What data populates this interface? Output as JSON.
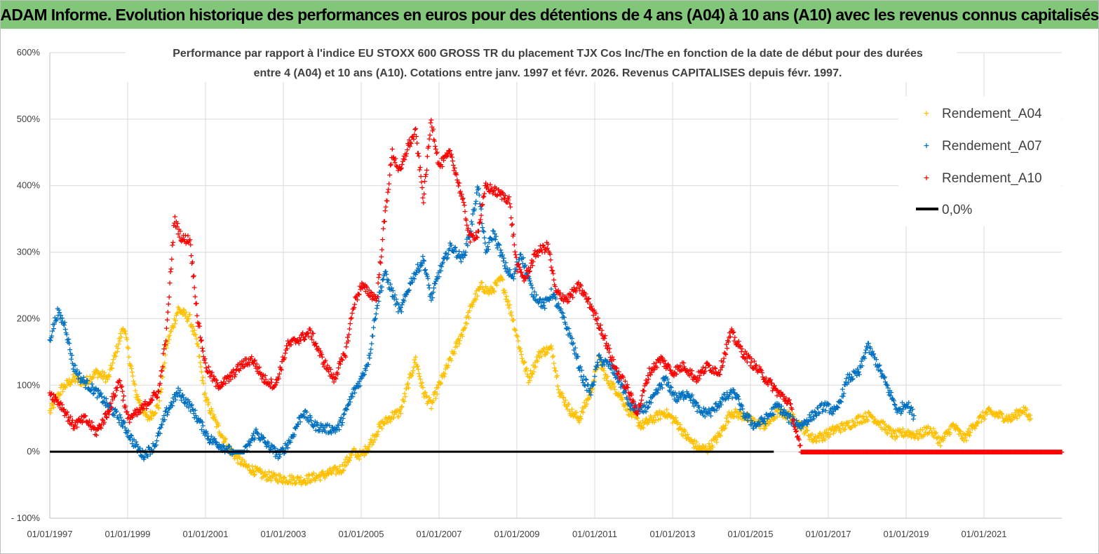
{
  "header": {
    "title": "ADAM Informe. Evolution historique des performances en euros pour des détentions de 4 ans (A04) à 10 ans (A10) avec les revenus connus capitalisés"
  },
  "colors": {
    "banner": "#82c67a",
    "a04": "#ffc000",
    "a07": "#0070c0",
    "a10": "#ff0000",
    "zero": "#000000",
    "grid": "#d9d9d9"
  },
  "chart_data": {
    "type": "scatter",
    "title_lines": [
      "Performance par rapport à l'indice EU STOXX 600 GROSS TR  du placement TJX Cos Inc/The en fonction de la date de début pour des durées",
      "entre 4 (A04) et 10 ans (A10). Cotations entre janv. 1997 et févr. 2026. Revenus CAPITALISES depuis févr. 1997."
    ],
    "ylim": [
      -100,
      600
    ],
    "yticks": [
      -100,
      0,
      100,
      200,
      300,
      400,
      500,
      600
    ],
    "ytick_labels": [
      "- 100%",
      "0%",
      "100%",
      "200%",
      "300%",
      "400%",
      "500%",
      "600%"
    ],
    "xlim": [
      1997.0,
      2023.0
    ],
    "xticks": [
      1997,
      1999,
      2001,
      2003,
      2005,
      2007,
      2009,
      2011,
      2013,
      2015,
      2017,
      2019,
      2021
    ],
    "xtick_labels": [
      "01/01/1997",
      "01/01/1999",
      "01/01/2001",
      "01/01/2003",
      "01/01/2005",
      "01/01/2007",
      "01/01/2009",
      "01/01/2011",
      "01/01/2013",
      "01/01/2015",
      "01/01/2017",
      "01/01/2019",
      "01/01/2021"
    ],
    "legend_position": "top-right",
    "series": [
      {
        "name": "Rendement_A04",
        "color": "#ffc000",
        "x": [
          1997.0,
          1997.3,
          1997.6,
          1997.9,
          1998.2,
          1998.5,
          1998.7,
          1998.9,
          1999.2,
          1999.5,
          1999.8,
          2000.0,
          2000.3,
          2000.6,
          2000.8,
          2001.0,
          2001.3,
          2001.6,
          2002.0,
          2002.5,
          2003.0,
          2003.5,
          2004.0,
          2004.5,
          2004.8,
          2005.0,
          2005.2,
          2005.5,
          2005.8,
          2006.0,
          2006.2,
          2006.4,
          2006.6,
          2006.8,
          2007.0,
          2007.3,
          2007.6,
          2007.9,
          2008.1,
          2008.3,
          2008.6,
          2008.9,
          2009.1,
          2009.3,
          2009.6,
          2009.9,
          2010.1,
          2010.4,
          2010.6,
          2010.9,
          2011.1,
          2011.3,
          2011.6,
          2011.9,
          2012.2,
          2012.5,
          2012.8,
          2013.1,
          2013.4,
          2013.7,
          2013.9,
          2014.2,
          2014.5,
          2014.8,
          2015.1,
          2015.4,
          2015.7,
          2016.0,
          2016.3,
          2016.6,
          2016.9,
          2017.2,
          2017.5,
          2017.8,
          2018.1,
          2018.4,
          2018.7,
          2019.0,
          2019.3,
          2019.6,
          2019.9,
          2020.2,
          2020.5,
          2020.8,
          2021.1,
          2021.4,
          2021.7,
          2022.0,
          2022.2
        ],
        "values": [
          60,
          95,
          110,
          105,
          120,
          110,
          150,
          190,
          90,
          50,
          70,
          160,
          215,
          200,
          160,
          80,
          40,
          5,
          -20,
          -35,
          -40,
          -42,
          -35,
          -25,
          0,
          -5,
          10,
          40,
          55,
          60,
          100,
          140,
          90,
          70,
          100,
          140,
          180,
          230,
          250,
          240,
          260,
          200,
          150,
          110,
          150,
          155,
          90,
          60,
          50,
          90,
          140,
          110,
          90,
          60,
          40,
          50,
          60,
          45,
          20,
          5,
          5,
          25,
          60,
          55,
          45,
          40,
          60,
          55,
          40,
          20,
          25,
          35,
          40,
          50,
          55,
          40,
          25,
          30,
          25,
          35,
          15,
          40,
          20,
          45,
          60,
          55,
          50,
          65,
          50
        ]
      },
      {
        "name": "Rendement_A07",
        "color": "#0070c0",
        "x": [
          1997.0,
          1997.2,
          1997.4,
          1997.6,
          1997.8,
          1998.0,
          1998.2,
          1998.5,
          1998.8,
          1999.0,
          1999.2,
          1999.4,
          1999.7,
          2000.0,
          2000.3,
          2000.6,
          2000.9,
          2001.1,
          2001.4,
          2001.7,
          2002.0,
          2002.3,
          2002.6,
          2002.9,
          2003.2,
          2003.5,
          2003.8,
          2004.1,
          2004.4,
          2004.6,
          2004.8,
          2005.0,
          2005.2,
          2005.4,
          2005.6,
          2005.8,
          2006.0,
          2006.3,
          2006.6,
          2006.8,
          2007.0,
          2007.3,
          2007.6,
          2007.8,
          2008.0,
          2008.2,
          2008.4,
          2008.7,
          2008.9,
          2009.1,
          2009.4,
          2009.7,
          2009.9,
          2010.2,
          2010.4,
          2010.7,
          2010.9,
          2011.1,
          2011.4,
          2011.7,
          2011.9,
          2012.2,
          2012.5,
          2012.8,
          2013.1,
          2013.4,
          2013.7,
          2014.0,
          2014.3,
          2014.6,
          2014.8,
          2015.1,
          2015.4,
          2015.7,
          2016.0,
          2016.3,
          2016.6,
          2016.9,
          2017.2,
          2017.5,
          2017.8,
          2018.0,
          2018.2,
          2018.5,
          2018.8,
          2019.0,
          2019.2
        ],
        "values": [
          170,
          210,
          190,
          130,
          110,
          100,
          90,
          70,
          50,
          30,
          10,
          -5,
          10,
          60,
          90,
          70,
          40,
          20,
          10,
          0,
          0,
          30,
          10,
          -5,
          20,
          60,
          40,
          35,
          35,
          60,
          90,
          110,
          140,
          220,
          270,
          240,
          210,
          260,
          290,
          230,
          270,
          310,
          290,
          330,
          400,
          300,
          330,
          280,
          260,
          300,
          240,
          220,
          240,
          200,
          170,
          110,
          90,
          140,
          130,
          100,
          70,
          60,
          80,
          110,
          80,
          90,
          60,
          60,
          80,
          90,
          60,
          40,
          50,
          70,
          50,
          40,
          55,
          70,
          60,
          110,
          120,
          160,
          140,
          100,
          60,
          75,
          55
        ]
      },
      {
        "name": "Rendement_A10",
        "color": "#ff0000",
        "x": [
          1997.0,
          1997.3,
          1997.6,
          1997.9,
          1998.2,
          1998.5,
          1998.8,
          1999.0,
          1999.3,
          1999.6,
          1999.8,
          2000.0,
          2000.2,
          2000.4,
          2000.6,
          2000.8,
          2001.0,
          2001.3,
          2001.6,
          2001.9,
          2002.2,
          2002.5,
          2002.8,
          2003.1,
          2003.4,
          2003.7,
          2004.0,
          2004.3,
          2004.6,
          2004.8,
          2005.0,
          2005.2,
          2005.4,
          2005.6,
          2005.8,
          2006.0,
          2006.2,
          2006.4,
          2006.6,
          2006.8,
          2007.0,
          2007.3,
          2007.6,
          2007.8,
          2008.0,
          2008.2,
          2008.5,
          2008.8,
          2009.0,
          2009.2,
          2009.5,
          2009.8,
          2010.0,
          2010.3,
          2010.6,
          2010.9,
          2011.2,
          2011.5,
          2011.8,
          2012.1,
          2012.4,
          2012.7,
          2013.0,
          2013.3,
          2013.6,
          2013.9,
          2014.2,
          2014.5,
          2014.8,
          2015.1,
          2015.4,
          2015.7,
          2016.0,
          2016.3,
          2016.6,
          2017.0,
          2017.5,
          2018.0,
          2018.5,
          2019.0,
          2019.5,
          2020.0,
          2020.5,
          2021.0,
          2021.5,
          2022.0,
          2022.5,
          2023.0
        ],
        "values": [
          90,
          70,
          40,
          50,
          30,
          60,
          110,
          50,
          60,
          80,
          90,
          180,
          350,
          320,
          320,
          200,
          130,
          100,
          110,
          130,
          140,
          110,
          100,
          160,
          170,
          180,
          140,
          110,
          150,
          220,
          250,
          240,
          230,
          350,
          450,
          420,
          460,
          480,
          380,
          500,
          430,
          450,
          380,
          320,
          330,
          400,
          390,
          380,
          280,
          260,
          300,
          310,
          240,
          230,
          250,
          220,
          180,
          130,
          100,
          60,
          120,
          140,
          120,
          130,
          110,
          130,
          120,
          180,
          150,
          130,
          110,
          90,
          75,
          0,
          0,
          0,
          0,
          0,
          0,
          0,
          0,
          0,
          0,
          0,
          0,
          0,
          0,
          0
        ]
      }
    ],
    "reference_line": {
      "name": "0,0%",
      "y": 0,
      "color": "#000000"
    }
  }
}
